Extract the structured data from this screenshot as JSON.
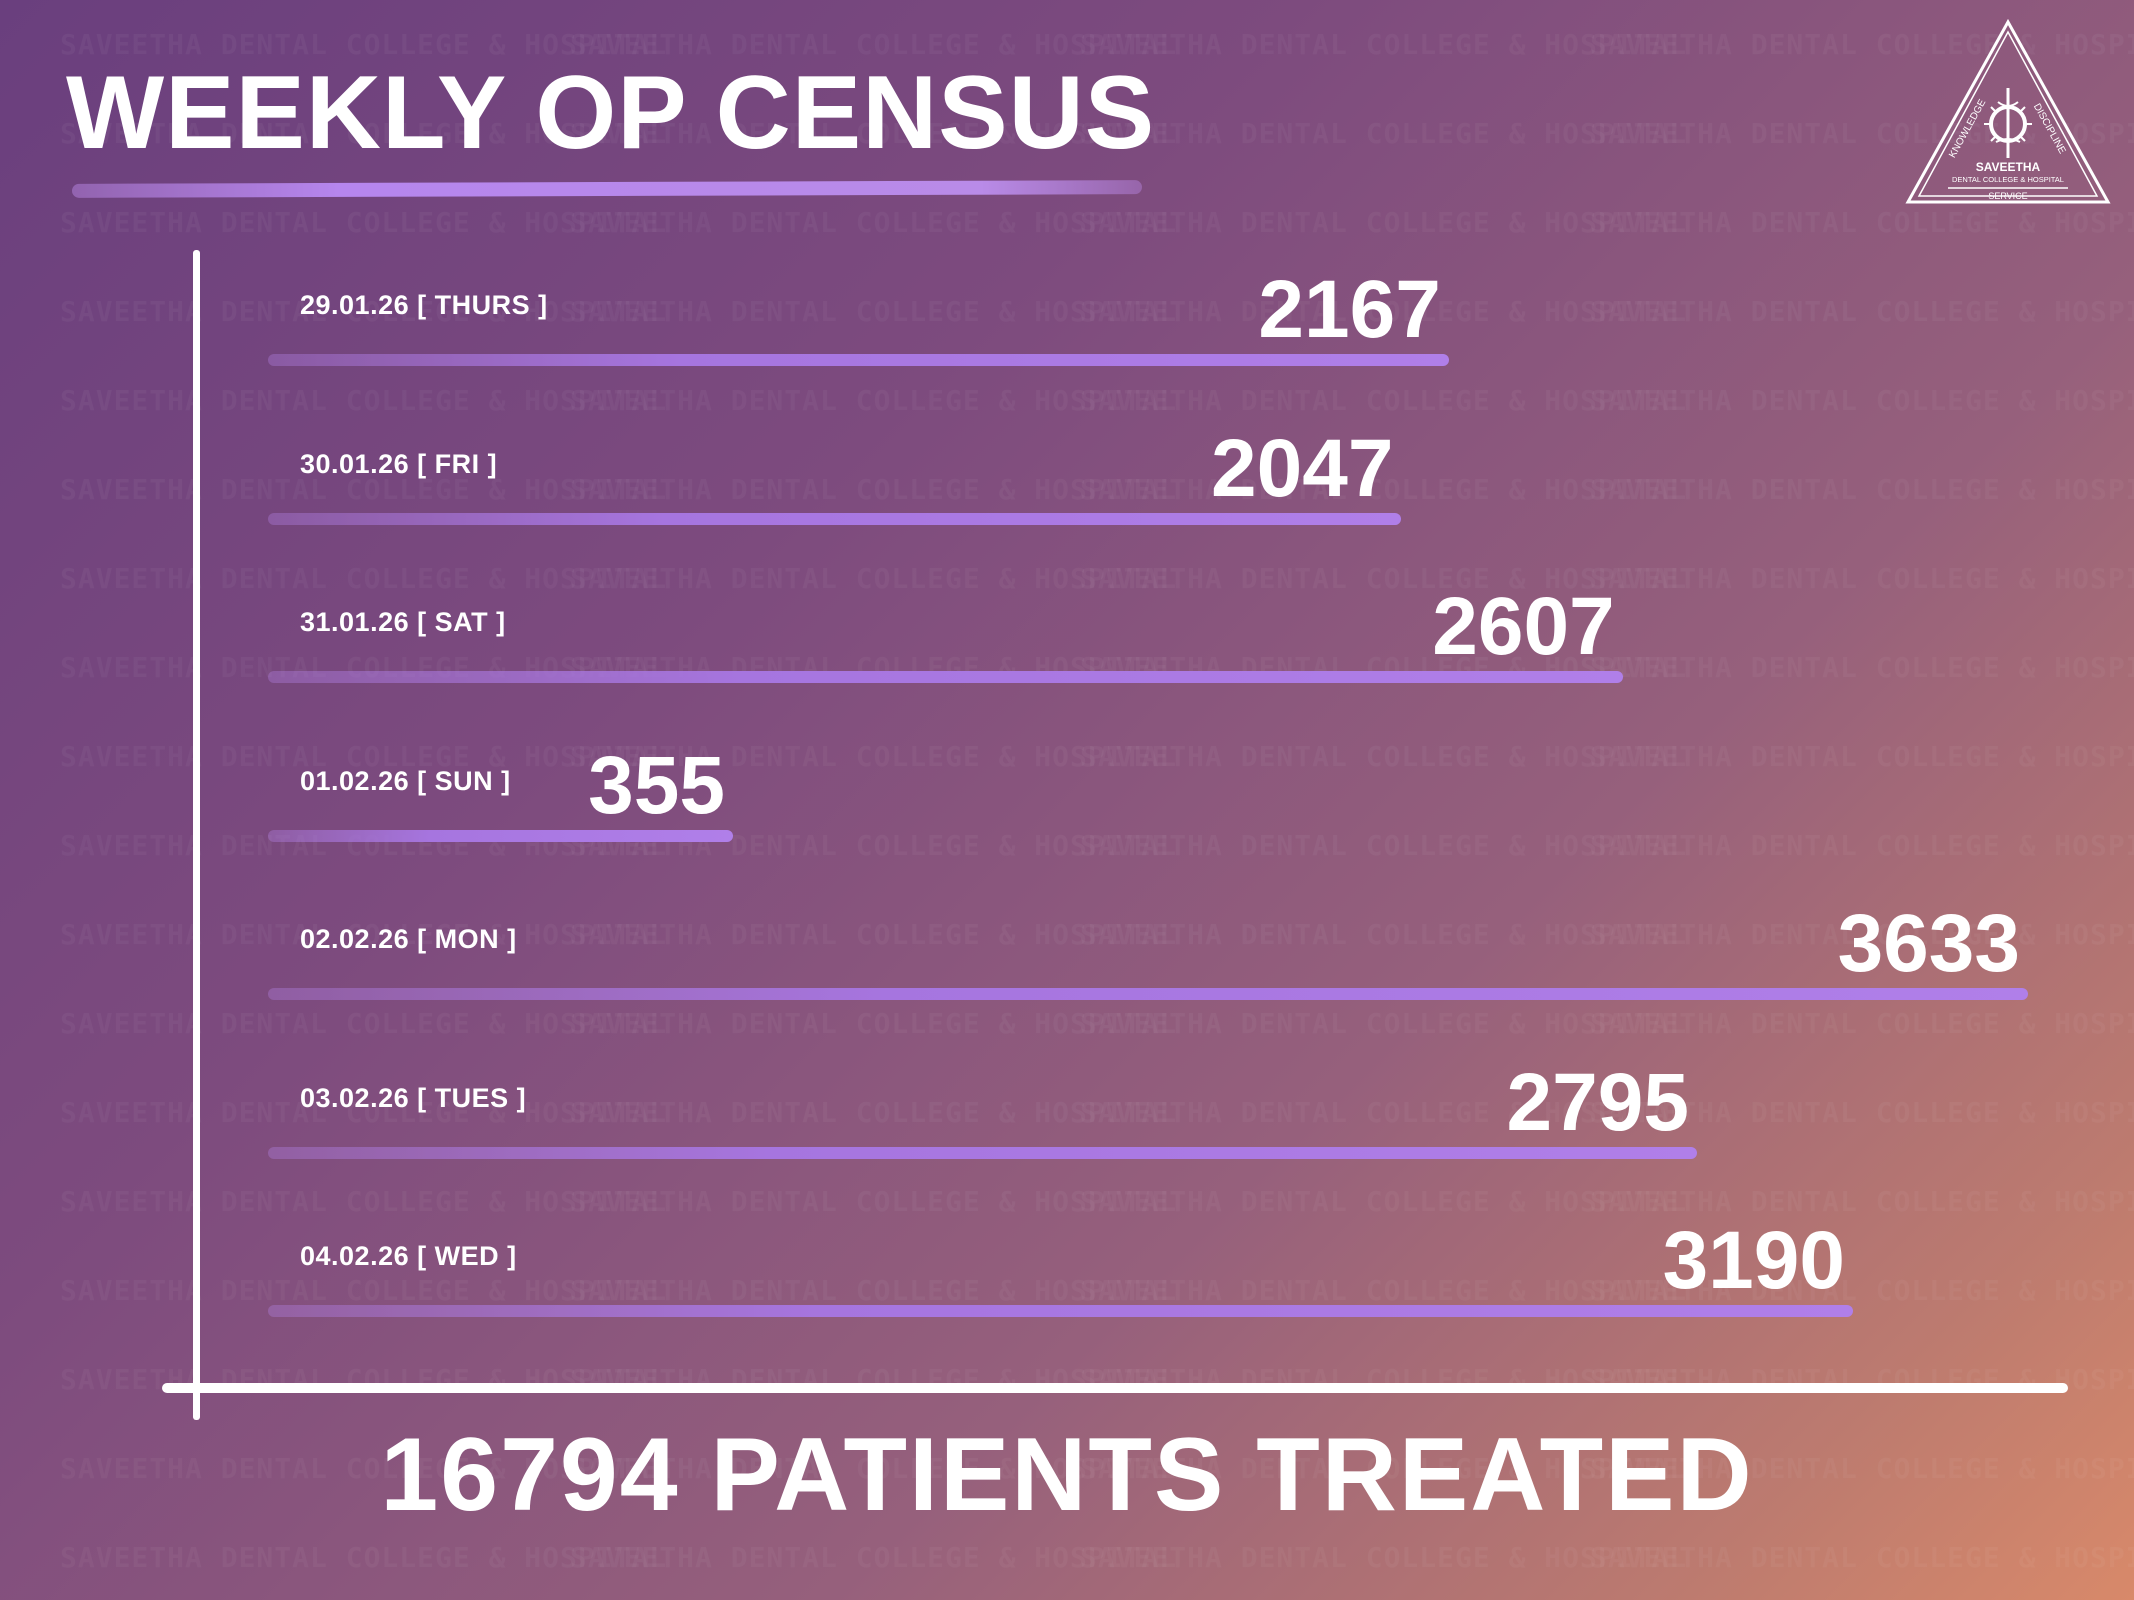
{
  "title": "WEEKLY OP CENSUS",
  "total_text": "16794 PATIENTS TREATED",
  "watermark_text": "SAVEETHA DENTAL COLLEGE & HOSPITAL",
  "logo": {
    "name": "SAVEETHA",
    "subtitle": "DENTAL COLLEGE & HOSPITAL",
    "left_text": "KNOWLEDGE",
    "right_text": "DISCIPLINE",
    "bottom_text": "SERVICE"
  },
  "colors": {
    "accent": "#b07fe9",
    "text": "#ffffff"
  },
  "chart_data": {
    "type": "bar",
    "orientation": "horizontal",
    "title": "WEEKLY OP CENSUS",
    "categories": [
      "29.01.26 [ THURS ]",
      "30.01.26 [ FRI ]",
      "31.01.26 [ SAT ]",
      "01.02.26 [ SUN ]",
      "02.02.26 [ MON ]",
      "03.02.26 [ TUES ]",
      "04.02.26 [ WED ]"
    ],
    "values": [
      2167,
      2047,
      2607,
      355,
      3633,
      2795,
      3190
    ],
    "xlim": [
      0,
      3633
    ],
    "grid": false,
    "legend": "none"
  }
}
